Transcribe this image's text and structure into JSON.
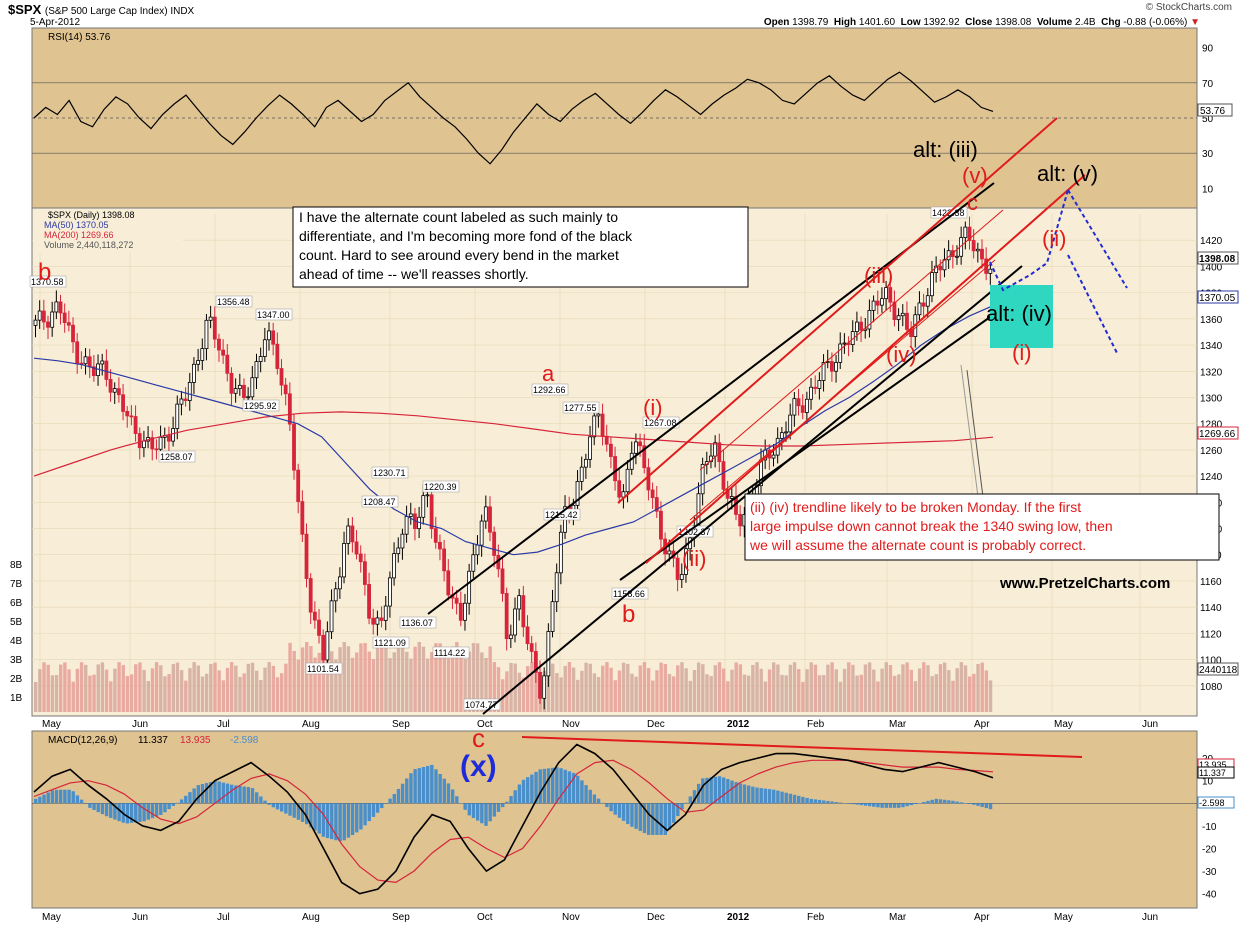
{
  "header": {
    "symbol": "$SPX",
    "name": "(S&P 500 Large Cap Index) INDX",
    "date": "5-Apr-2012",
    "open_label": "Open",
    "open": "1398.79",
    "high_label": "High",
    "high": "1401.60",
    "low_label": "Low",
    "low": "1392.92",
    "close_label": "Close",
    "close": "1398.08",
    "volume_label": "Volume",
    "volume": "2.4B",
    "chg_label": "Chg",
    "chg": "-0.88 (-0.06%)",
    "logo": "© StockCharts.com"
  },
  "watermark": "www.PretzelCharts.com",
  "notes": {
    "black_box": [
      "I have the alternate count labeled as such mainly to",
      "differentiate, and I'm becoming more fond of the black",
      "count.  Hard to see around every bend in the market",
      "ahead of time -- we'll reasses shortly."
    ],
    "red_box": [
      "(ii) (iv) trendline likely to be broken Monday.  If the first",
      "large impulse down cannot break the 1340 swing low, then",
      "we will assume the alternate count is probably correct."
    ]
  },
  "colors": {
    "panel_bg": "#dfc391",
    "price_bg": "#f8edd6",
    "up_candle": "#000000",
    "down_candle": "#d6243a",
    "ma50": "#2b3aa6",
    "ma200": "#d6243a",
    "macd_hist": "#4a8fc9",
    "teal_box": "#2fd6c0",
    "wave_red": "#e01b1b",
    "wave_blue": "#1f2bd8"
  },
  "chart_data": [
    {
      "type": "line",
      "panel": "RSI",
      "title": "RSI(14) 53.76",
      "series": [
        {
          "name": "RSI(14)",
          "last": 53.76,
          "values": [
            50,
            56,
            52,
            60,
            48,
            45,
            55,
            62,
            58,
            50,
            44,
            52,
            58,
            63,
            55,
            47,
            40,
            35,
            42,
            50,
            57,
            63,
            58,
            52,
            45,
            56,
            60,
            54,
            48,
            52,
            60,
            65,
            70,
            62,
            56,
            50,
            45,
            38,
            30,
            24,
            32,
            42,
            50,
            58,
            52,
            48,
            55,
            60,
            64,
            58,
            52,
            47,
            53,
            60,
            66,
            62,
            57,
            52,
            58,
            63,
            67,
            72,
            70,
            66,
            60,
            58,
            64,
            70,
            74,
            68,
            63,
            60,
            66,
            72,
            76,
            71,
            65,
            59,
            62,
            66,
            62,
            56,
            53.76
          ]
        }
      ],
      "y_ticks": [
        90,
        70,
        50,
        30,
        10
      ],
      "ylim": [
        0,
        100
      ]
    },
    {
      "type": "candlestick",
      "panel": "Price",
      "legend": [
        "$SPX (Daily) 1398.08",
        "MA(50) 1370.05",
        "MA(200) 1269.66",
        "Volume 2,440,118,272"
      ],
      "x_months": [
        "May",
        "Jun",
        "Jul",
        "Aug",
        "Sep",
        "Oct",
        "Nov",
        "Dec",
        "2012",
        "Feb",
        "Mar",
        "Apr",
        "May",
        "Jun"
      ],
      "y_ticks": [
        1420,
        1400,
        1380,
        1360,
        1340,
        1320,
        1300,
        1280,
        1260,
        1240,
        1220,
        1200,
        1180,
        1160,
        1140,
        1120,
        1100,
        1080
      ],
      "ylim": [
        1060,
        1440
      ],
      "price_path": [
        1355,
        1362,
        1370.58,
        1345,
        1330,
        1318,
        1325,
        1300,
        1285,
        1272,
        1258.07,
        1268,
        1280,
        1300,
        1330,
        1356.48,
        1340,
        1310,
        1295.92,
        1320,
        1347.0,
        1330,
        1290,
        1200,
        1140,
        1101.54,
        1150,
        1200,
        1180,
        1140,
        1121.09,
        1170,
        1208.47,
        1200,
        1230.71,
        1180,
        1150,
        1136.07,
        1170,
        1220.39,
        1180,
        1114.22,
        1150,
        1100,
        1074.77,
        1150,
        1210,
        1230,
        1260,
        1292.66,
        1250,
        1215.42,
        1277.55,
        1240,
        1210,
        1180,
        1158.66,
        1200,
        1240,
        1267.08,
        1230,
        1202.37,
        1220,
        1245,
        1260,
        1275,
        1290,
        1300,
        1312,
        1325,
        1338,
        1345,
        1360,
        1370,
        1378,
        1365,
        1345,
        1375,
        1390,
        1405,
        1415,
        1422.38,
        1410,
        1398.08
      ],
      "ma50_path": [
        1330,
        1328,
        1325,
        1320,
        1315,
        1310,
        1305,
        1300,
        1295,
        1290,
        1285,
        1280,
        1270,
        1250,
        1230,
        1215,
        1205,
        1200,
        1190,
        1185,
        1180,
        1182,
        1188,
        1195,
        1200,
        1205,
        1215,
        1225,
        1235,
        1245,
        1255,
        1265,
        1278,
        1290,
        1300,
        1312,
        1325,
        1340,
        1352,
        1362,
        1370.05
      ],
      "ma200_path": [
        1240,
        1250,
        1260,
        1268,
        1275,
        1280,
        1285,
        1288,
        1289,
        1288,
        1286,
        1283,
        1280,
        1276,
        1272,
        1270,
        1268,
        1266,
        1264,
        1263,
        1263,
        1264,
        1265,
        1266,
        1267,
        1269.66
      ],
      "price_labels": [
        {
          "text": "1370.58",
          "x": 0,
          "y": 1370.58
        },
        {
          "text": "1356.48",
          "x": 1,
          "y": 1356.48
        },
        {
          "text": "1347.00",
          "x": 2,
          "y": 1347.0
        },
        {
          "text": "1295.92",
          "x": 3,
          "y": 1295.92
        },
        {
          "text": "1258.07",
          "x": 4,
          "y": 1258.07
        },
        {
          "text": "1230.71",
          "x": 5,
          "y": 1230.71
        },
        {
          "text": "1208.47",
          "x": 6,
          "y": 1208.47
        },
        {
          "text": "1220.39",
          "x": 7,
          "y": 1220.39
        },
        {
          "text": "1136.07",
          "x": 8,
          "y": 1136.07
        },
        {
          "text": "1121.09",
          "x": 9,
          "y": 1121.09
        },
        {
          "text": "1114.22",
          "x": 10,
          "y": 1114.22
        },
        {
          "text": "1101.54",
          "x": 11,
          "y": 1101.54
        },
        {
          "text": "1074.77",
          "x": 12,
          "y": 1074.77
        },
        {
          "text": "1292.66",
          "x": 13,
          "y": 1292.66
        },
        {
          "text": "1277.55",
          "x": 14,
          "y": 1277.55
        },
        {
          "text": "1215.42",
          "x": 15,
          "y": 1215.42
        },
        {
          "text": "1267.08",
          "x": 16,
          "y": 1267.08
        },
        {
          "text": "1202.37",
          "x": 17,
          "y": 1202.37
        },
        {
          "text": "1158.66",
          "x": 18,
          "y": 1158.66
        },
        {
          "text": "1422.38",
          "x": 19,
          "y": 1422.38
        }
      ],
      "right_axis_badges": [
        "1398.08",
        "1370.05",
        "1269.66",
        "2440118"
      ],
      "volume_ticks": [
        "8B",
        "7B",
        "6B",
        "5B",
        "4B",
        "3B",
        "2B",
        "1B"
      ],
      "wave_labels": [
        "b",
        "a",
        "b",
        "c",
        "(i)",
        "(ii)",
        "(iii)",
        "(iv)",
        "(v)",
        "c",
        "(ii)",
        "(i)",
        "alt: (iii)",
        "alt: (iv)",
        "alt: (v)"
      ]
    },
    {
      "type": "line",
      "panel": "MACD",
      "title": "MACD(12,26,9) 11.337, 13.935, -2.598",
      "legend": [
        "MACD(12,26,9)",
        "11.337",
        "13.935",
        "-2.598"
      ],
      "series": [
        {
          "name": "MACD",
          "last": 11.337
        },
        {
          "name": "Signal",
          "last": 13.935
        },
        {
          "name": "Histogram",
          "last": -2.598
        }
      ],
      "macd_path": [
        5,
        12,
        15,
        8,
        2,
        -5,
        -10,
        -12,
        -8,
        2,
        10,
        14,
        18,
        12,
        5,
        -5,
        -20,
        -35,
        -40,
        -38,
        -30,
        -15,
        -5,
        -8,
        -20,
        -30,
        -25,
        -10,
        5,
        18,
        26,
        22,
        15,
        5,
        -5,
        -12,
        -5,
        8,
        15,
        18,
        20,
        22,
        22,
        21,
        20,
        19,
        17,
        15,
        14,
        16,
        18,
        16,
        14,
        11.337
      ],
      "signal_path": [
        3,
        6,
        9,
        10,
        8,
        4,
        -2,
        -7,
        -9,
        -6,
        0,
        6,
        11,
        13,
        10,
        4,
        -5,
        -18,
        -28,
        -34,
        -35,
        -30,
        -22,
        -16,
        -15,
        -20,
        -24,
        -20,
        -10,
        2,
        13,
        18,
        19,
        15,
        9,
        2,
        -4,
        -3,
        3,
        9,
        13,
        16,
        18,
        19,
        19,
        19,
        18,
        17,
        16,
        16,
        16,
        15,
        14.5,
        13.935
      ],
      "y_ticks": [
        20,
        10,
        0,
        -10,
        -20,
        -30,
        -40
      ],
      "ylim": [
        -45,
        28
      ],
      "labels": [
        "c",
        "(x)"
      ]
    }
  ],
  "axis_badges": {
    "rsi": "53.76",
    "macd_a": "13.935",
    "macd_b": "11.337",
    "macd_c": "-2.598"
  }
}
